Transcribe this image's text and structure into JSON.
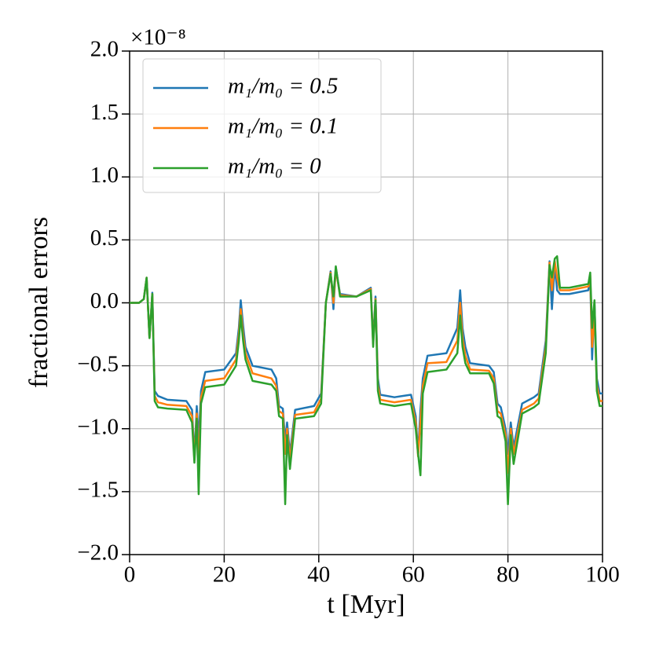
{
  "chart_data": {
    "type": "line",
    "xlabel": "t [Myr]",
    "ylabel": "fractional errors",
    "y_offset_label": "×10⁻⁸",
    "xlim": [
      0,
      100
    ],
    "xticks": [
      0,
      20,
      40,
      60,
      80,
      100
    ],
    "ylim": [
      -2.0,
      2.0
    ],
    "yticks": [
      {
        "value": -2.0,
        "label": "−2.0"
      },
      {
        "value": -1.5,
        "label": "−1.5"
      },
      {
        "value": -1.0,
        "label": "−1.0"
      },
      {
        "value": -0.5,
        "label": "−0.5"
      },
      {
        "value": 0,
        "label": "0.0"
      },
      {
        "value": 0.5,
        "label": "0.5"
      },
      {
        "value": 1.0,
        "label": "1.0"
      },
      {
        "value": 1.5,
        "label": "1.5"
      },
      {
        "value": 2.0,
        "label": "2.0"
      }
    ],
    "grid": true,
    "legend": "upper left",
    "x": [
      0,
      2,
      3,
      3.6,
      4.2,
      4.8,
      5.3,
      6,
      8,
      12,
      13.2,
      13.7,
      14.2,
      14.6,
      15.1,
      16,
      20,
      22.5,
      23.1,
      23.5,
      24,
      24.5,
      26,
      30,
      31,
      31.6,
      32.4,
      32.9,
      33.3,
      33.9,
      35,
      39,
      40.5,
      41.5,
      42.5,
      43.1,
      43.6,
      44.5,
      48,
      51,
      51.5,
      52,
      52.5,
      53,
      56,
      59.5,
      60.5,
      61,
      61.5,
      62,
      63,
      67,
      69.3,
      69.9,
      70.4,
      71,
      72,
      76,
      77,
      77.8,
      78.5,
      79.5,
      80,
      80.6,
      81.2,
      83,
      85.5,
      86.5,
      88,
      88.8,
      89.3,
      89.9,
      90.4,
      91,
      93,
      97,
      97.4,
      97.8,
      98.3,
      98.8,
      99.4,
      100
    ],
    "series": [
      {
        "name": "m₁/m₀ = 0.5",
        "color": "#1f77b4",
        "values": [
          0,
          0,
          0.03,
          0.2,
          -0.28,
          0.08,
          -0.7,
          -0.74,
          -0.77,
          -0.78,
          -0.85,
          -1.22,
          -0.82,
          -1.1,
          -0.7,
          -0.55,
          -0.53,
          -0.4,
          -0.2,
          0.02,
          -0.18,
          -0.35,
          -0.5,
          -0.53,
          -0.6,
          -0.82,
          -0.84,
          -1.1,
          -0.95,
          -1.2,
          -0.85,
          -0.82,
          -0.72,
          0.0,
          0.25,
          -0.05,
          0.28,
          0.07,
          0.05,
          0.12,
          -0.3,
          0.05,
          -0.6,
          -0.73,
          -0.75,
          -0.73,
          -0.9,
          -1.2,
          -0.85,
          -0.6,
          -0.42,
          -0.4,
          -0.2,
          0.1,
          -0.2,
          -0.35,
          -0.48,
          -0.5,
          -0.55,
          -0.8,
          -0.83,
          -1.0,
          -1.2,
          -0.95,
          -1.15,
          -0.8,
          -0.75,
          -0.72,
          -0.3,
          0.33,
          -0.05,
          0.3,
          0.1,
          0.07,
          0.07,
          0.1,
          0.2,
          -0.45,
          0.0,
          -0.6,
          -0.72,
          -0.72
        ]
      },
      {
        "name": "m₁/m₀ = 0.1",
        "color": "#ff7f0e",
        "values": [
          0,
          0,
          0.03,
          0.2,
          -0.28,
          0.07,
          -0.74,
          -0.79,
          -0.81,
          -0.82,
          -0.9,
          -1.25,
          -0.88,
          -1.3,
          -0.75,
          -0.62,
          -0.6,
          -0.45,
          -0.25,
          -0.05,
          -0.25,
          -0.4,
          -0.56,
          -0.6,
          -0.66,
          -0.86,
          -0.88,
          -1.2,
          -1.0,
          -1.25,
          -0.89,
          -0.87,
          -0.76,
          0.0,
          0.24,
          0.0,
          0.27,
          0.06,
          0.05,
          0.11,
          -0.33,
          0.03,
          -0.65,
          -0.77,
          -0.79,
          -0.77,
          -0.95,
          -1.22,
          -0.95,
          -0.66,
          -0.48,
          -0.47,
          -0.3,
          0.0,
          -0.28,
          -0.42,
          -0.53,
          -0.54,
          -0.6,
          -0.86,
          -0.88,
          -1.05,
          -1.35,
          -1.0,
          -1.2,
          -0.85,
          -0.8,
          -0.76,
          -0.35,
          0.32,
          0.1,
          0.33,
          0.2,
          0.1,
          0.1,
          0.13,
          0.22,
          -0.35,
          -0.1,
          -0.65,
          -0.78,
          -0.78
        ]
      },
      {
        "name": "m₁/m₀ = 0",
        "color": "#2ca02c",
        "values": [
          0,
          0,
          0.03,
          0.2,
          -0.28,
          0.07,
          -0.78,
          -0.83,
          -0.84,
          -0.85,
          -0.95,
          -1.27,
          -0.92,
          -1.52,
          -0.8,
          -0.67,
          -0.65,
          -0.5,
          -0.3,
          -0.1,
          -0.3,
          -0.45,
          -0.62,
          -0.65,
          -0.7,
          -0.9,
          -0.92,
          -1.6,
          -1.05,
          -1.32,
          -0.92,
          -0.9,
          -0.8,
          0.0,
          0.23,
          0.05,
          0.29,
          0.05,
          0.05,
          0.1,
          -0.35,
          0.02,
          -0.7,
          -0.8,
          -0.82,
          -0.8,
          -1.0,
          -1.2,
          -1.37,
          -0.72,
          -0.55,
          -0.53,
          -0.4,
          -0.1,
          -0.35,
          -0.48,
          -0.56,
          -0.56,
          -0.64,
          -0.9,
          -0.92,
          -1.1,
          -1.6,
          -1.05,
          -1.28,
          -0.88,
          -0.83,
          -0.8,
          -0.4,
          0.3,
          0.2,
          0.35,
          0.37,
          0.12,
          0.12,
          0.15,
          0.24,
          -0.2,
          0.02,
          -0.7,
          -0.82,
          -0.82
        ]
      }
    ]
  }
}
